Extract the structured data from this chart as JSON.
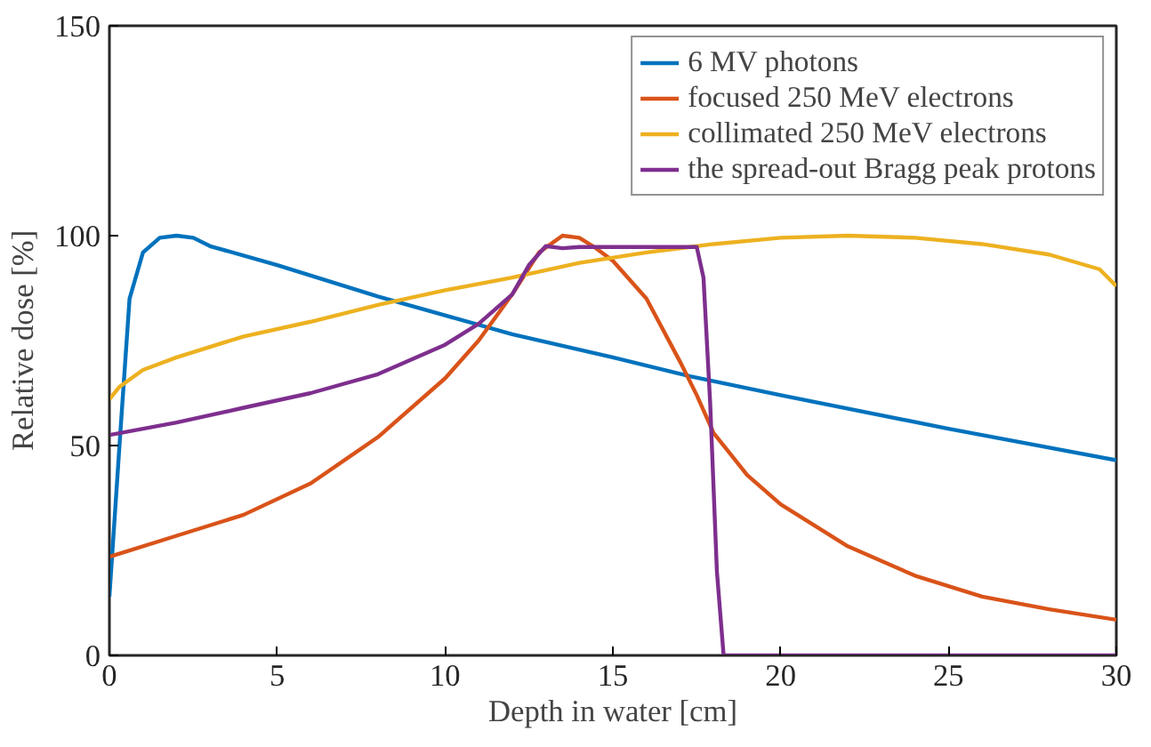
{
  "chart_data": {
    "type": "line",
    "xlabel": "Depth in water [cm]",
    "ylabel": "Relative dose [%]",
    "xlim": [
      0,
      30
    ],
    "ylim": [
      0,
      150
    ],
    "xticks": [
      0,
      5,
      10,
      15,
      20,
      25,
      30
    ],
    "yticks": [
      0,
      50,
      100,
      150
    ],
    "grid": false,
    "legend": "top right",
    "line_style": "solid",
    "marker": "none",
    "series": [
      {
        "name": "6 MV photons",
        "color": "#0072bd",
        "x": [
          0,
          0.3,
          0.6,
          1,
          1.5,
          2,
          2.5,
          3,
          5,
          8,
          10,
          12,
          15,
          17.3,
          20,
          25,
          30
        ],
        "values": [
          14,
          50,
          85,
          96,
          99.5,
          100,
          99.5,
          97.5,
          93,
          85.5,
          81,
          76.5,
          71,
          66.5,
          62,
          54,
          46.5
        ]
      },
      {
        "name": "focused 250 MeV electrons",
        "color": "#d95319",
        "x": [
          0,
          2,
          4,
          6,
          8,
          10,
          11,
          12,
          12.8,
          13.5,
          14,
          14.5,
          15,
          16,
          17,
          17.5,
          18,
          19,
          20,
          22,
          24,
          26,
          28,
          30
        ],
        "values": [
          23.5,
          28.5,
          33.5,
          41,
          52,
          66,
          75,
          86,
          96,
          100,
          99.5,
          97,
          94,
          85,
          70,
          62,
          53,
          43,
          36,
          26,
          19,
          14,
          11,
          8.5
        ]
      },
      {
        "name": "collimated 250 MeV electrons",
        "color": "#edb120",
        "x": [
          0,
          0.3,
          1,
          2,
          4,
          6,
          8,
          10,
          12,
          14,
          16,
          18,
          20,
          22,
          24,
          26,
          28,
          29.5,
          30
        ],
        "values": [
          61,
          64,
          68,
          71,
          76,
          79.5,
          83.5,
          87,
          90,
          93.5,
          96,
          98,
          99.5,
          100,
          99.5,
          98,
          95.5,
          92,
          88
        ]
      },
      {
        "name": "the spread-out Bragg peak protons",
        "color": "#7e2f8e",
        "x": [
          0,
          2,
          4,
          6,
          8,
          10,
          11,
          12,
          12.5,
          13,
          13.5,
          14,
          15,
          17,
          17.5,
          17.7,
          17.9,
          18.1,
          18.3,
          20,
          30
        ],
        "values": [
          52.5,
          55.5,
          59,
          62.5,
          67,
          74,
          79,
          86,
          93,
          97.5,
          97,
          97.3,
          97.3,
          97.3,
          97.3,
          90,
          60,
          20,
          0,
          0,
          0
        ]
      }
    ]
  }
}
